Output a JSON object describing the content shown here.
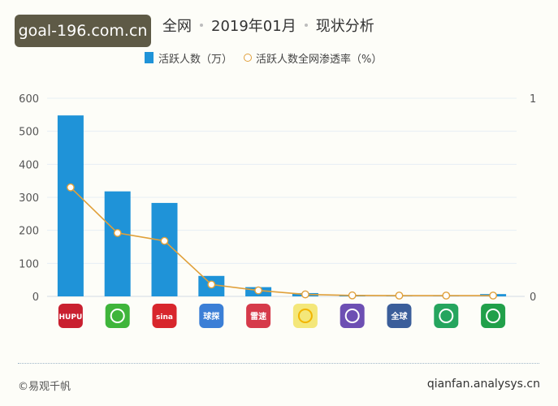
{
  "watermark": "goal-196.com.cn",
  "title": {
    "part1": "全网",
    "part2": "2019年01月",
    "part3": "现状分析"
  },
  "legend": {
    "bar": "活跃人数（万）",
    "line": "活跃人数全网渗透率（%）"
  },
  "footer": {
    "left": "©易观千帆",
    "right": "qianfan.analysys.cn"
  },
  "colors": {
    "bar": "#1f93d8",
    "line": "#e0a03a",
    "grid": "#e6eef5"
  },
  "chart_data": {
    "type": "bar",
    "categories": [
      "",
      "",
      "",
      "",
      "",
      "",
      "",
      "",
      "",
      ""
    ],
    "series": [
      {
        "name": "活跃人数（万）",
        "type": "bar",
        "axis": "left",
        "values": [
          548,
          318,
          283,
          62,
          28,
          10,
          4,
          3,
          3,
          7
        ]
      },
      {
        "name": "活跃人数全网渗透率（%）",
        "type": "line",
        "axis": "right",
        "values": [
          0.55,
          0.32,
          0.28,
          0.06,
          0.03,
          0.01,
          0.005,
          0.004,
          0.004,
          0.004
        ]
      }
    ],
    "ylim": [
      0,
      600
    ],
    "yticks": [
      "0",
      "100",
      "200",
      "300",
      "400",
      "500",
      "600"
    ],
    "y2lim": [
      0,
      1
    ],
    "y2ticks": [
      "0",
      "1"
    ],
    "grid": true,
    "legend": "top",
    "icons": [
      {
        "name": "hupu-icon",
        "color": "#c9202f",
        "label": "HUPU"
      },
      {
        "name": "dongqiudi-icon",
        "color": "#3fb53b",
        "label": ""
      },
      {
        "name": "sina-sports-icon",
        "color": "#d8262c",
        "label": "sina"
      },
      {
        "name": "zhibo8-icon",
        "color": "#3b7fd6",
        "label": "球探"
      },
      {
        "name": "leisu-icon",
        "color": "#d63a4a",
        "label": "雷速"
      },
      {
        "name": "sun-icon",
        "color": "#f4e77a",
        "label": ""
      },
      {
        "name": "soccer-player-icon",
        "color": "#6d4fb3",
        "label": ""
      },
      {
        "name": "quanqiu-icon",
        "color": "#3b5e9a",
        "label": "全球"
      },
      {
        "name": "search-ball-icon",
        "color": "#25a55e",
        "label": ""
      },
      {
        "name": "green-app-icon",
        "color": "#21a04a",
        "label": ""
      }
    ]
  }
}
